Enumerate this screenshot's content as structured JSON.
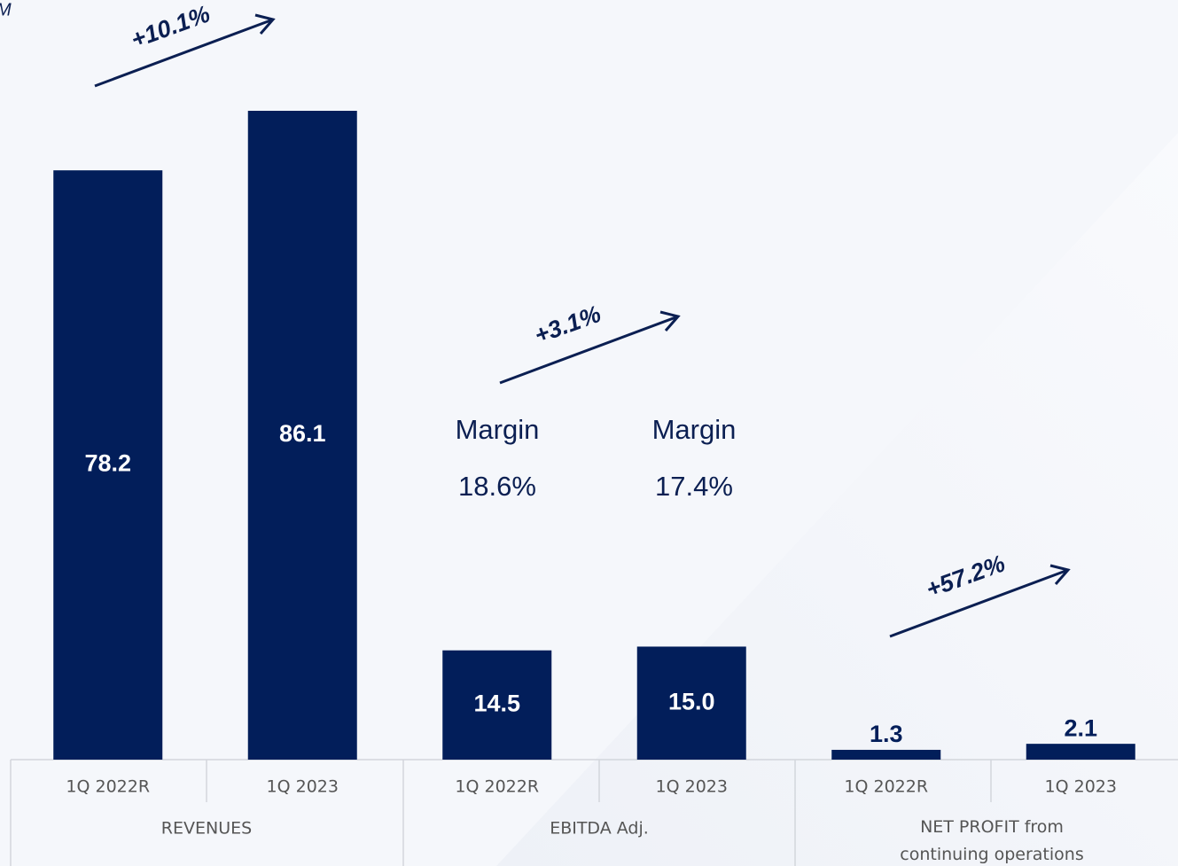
{
  "chart_data": {
    "type": "bar",
    "unit": "M",
    "categories": [
      "1Q 2022R",
      "1Q 2023",
      "1Q 2022R",
      "1Q 2023",
      "1Q 2022R",
      "1Q 2023"
    ],
    "groups": [
      "REVENUES",
      "EBITDA Adj.",
      "NET PROFIT from continuing operations"
    ],
    "values": [
      78.2,
      86.1,
      14.5,
      15.0,
      1.3,
      2.1
    ],
    "value_labels": [
      "78.2",
      "86.1",
      "14.5",
      "15.0",
      "1.3",
      "2.1"
    ],
    "color": "#021e5a",
    "annotations": [
      "+10.1%",
      "+3.1%",
      "+57.2%"
    ],
    "margins": [
      {
        "label": "Margin",
        "value": "18.6%"
      },
      {
        "label": "Margin",
        "value": "17.4%"
      }
    ]
  }
}
